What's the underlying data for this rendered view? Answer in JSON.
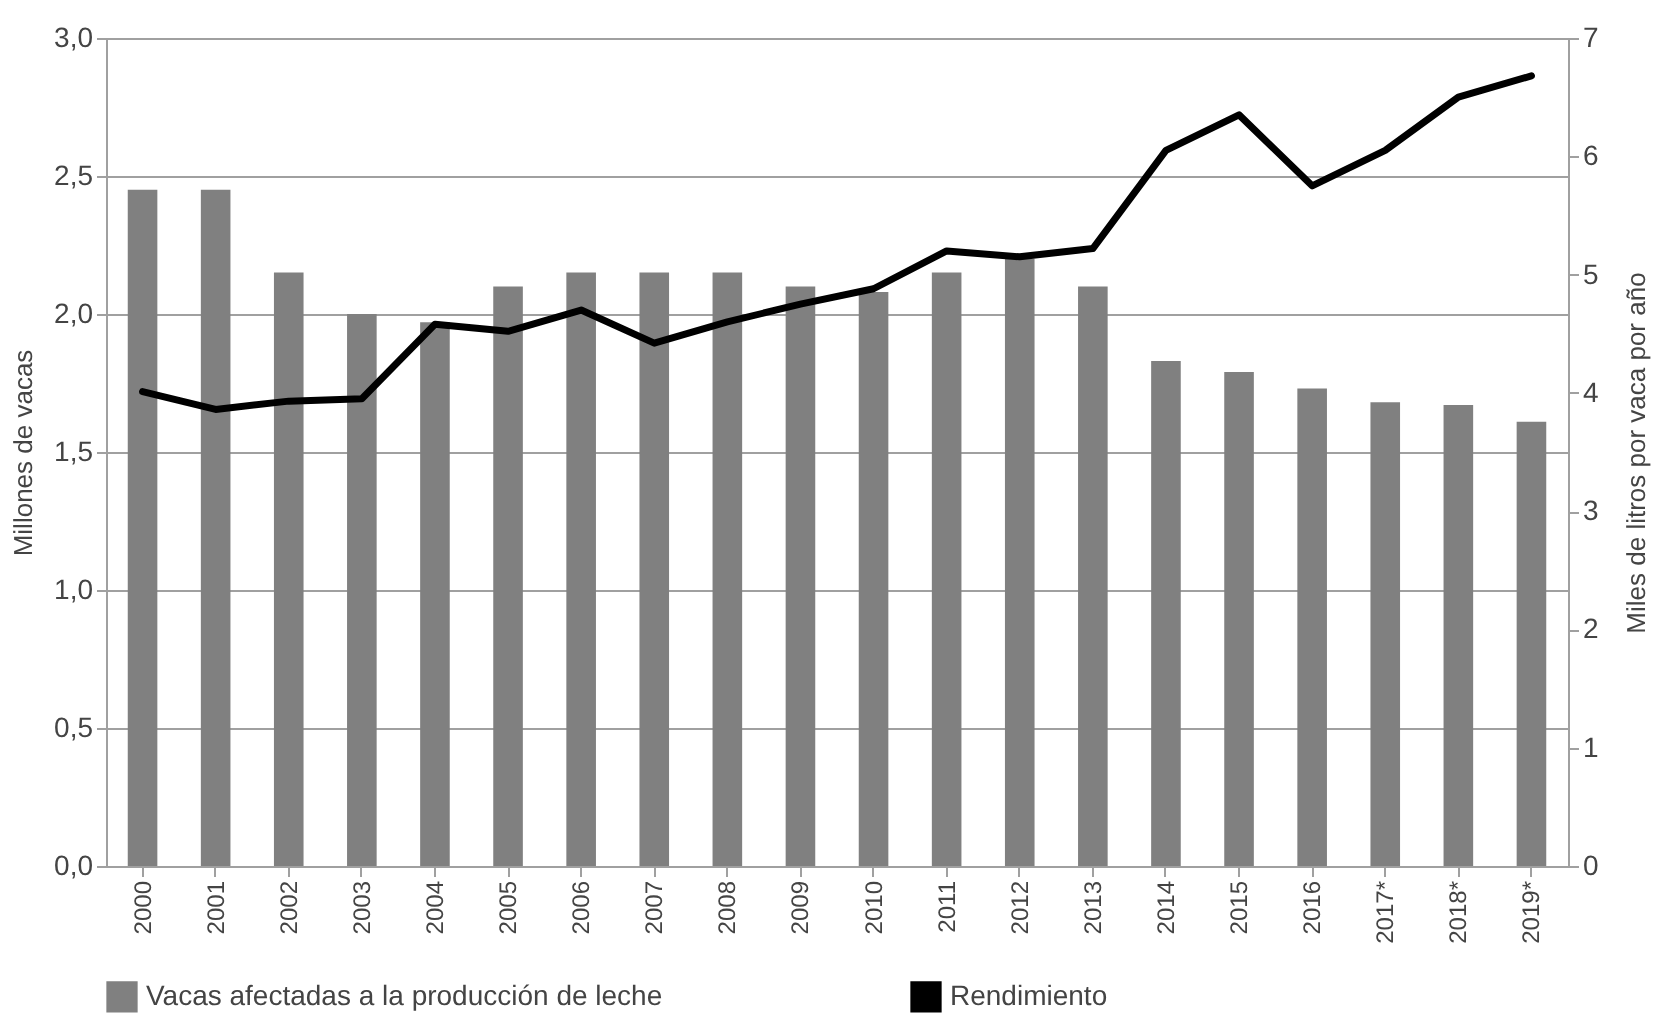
{
  "chart_data": {
    "type": "bar",
    "ylabel": "Millones de vacas",
    "y2label": "Miles de litros por vaca por año",
    "categories": [
      "2000",
      "2001",
      "2002",
      "2003",
      "2004",
      "2005",
      "2006",
      "2007",
      "2008",
      "2009",
      "2010",
      "2011",
      "2012",
      "2013",
      "2014",
      "2015",
      "2016",
      "2017*",
      "2018*",
      "2019*"
    ],
    "series": [
      {
        "name": "Vacas afectadas a la producción de leche",
        "color": "#808080",
        "values": [
          2.45,
          2.45,
          2.15,
          2.0,
          1.97,
          2.1,
          2.15,
          2.15,
          2.15,
          2.1,
          2.08,
          2.15,
          2.2,
          2.1,
          1.83,
          1.79,
          1.73,
          1.68,
          1.67,
          1.61
        ]
      },
      {
        "name": "Rendimiento",
        "type": "line",
        "axis": "y2",
        "color": "#000000",
        "values": [
          4.01,
          3.86,
          3.93,
          3.95,
          4.58,
          4.52,
          4.7,
          4.42,
          4.6,
          4.75,
          4.88,
          5.2,
          5.15,
          5.22,
          6.05,
          6.35,
          5.75,
          6.05,
          6.5,
          6.68
        ]
      }
    ],
    "ylim": [
      0,
      3
    ],
    "yticks": [
      {
        "value": 0,
        "label": "0,0"
      },
      {
        "value": 0.5,
        "label": "0,5"
      },
      {
        "value": 1,
        "label": "1,0"
      },
      {
        "value": 1.5,
        "label": "1,5"
      },
      {
        "value": 2,
        "label": "2,0"
      },
      {
        "value": 2.5,
        "label": "2,5"
      },
      {
        "value": 3,
        "label": "3,0"
      }
    ],
    "y2lim": [
      0,
      7
    ],
    "y2ticks": [
      0,
      1,
      2,
      3,
      4,
      5,
      6,
      7
    ],
    "grid": "y",
    "legend": "bottom",
    "line_style": "solid"
  }
}
